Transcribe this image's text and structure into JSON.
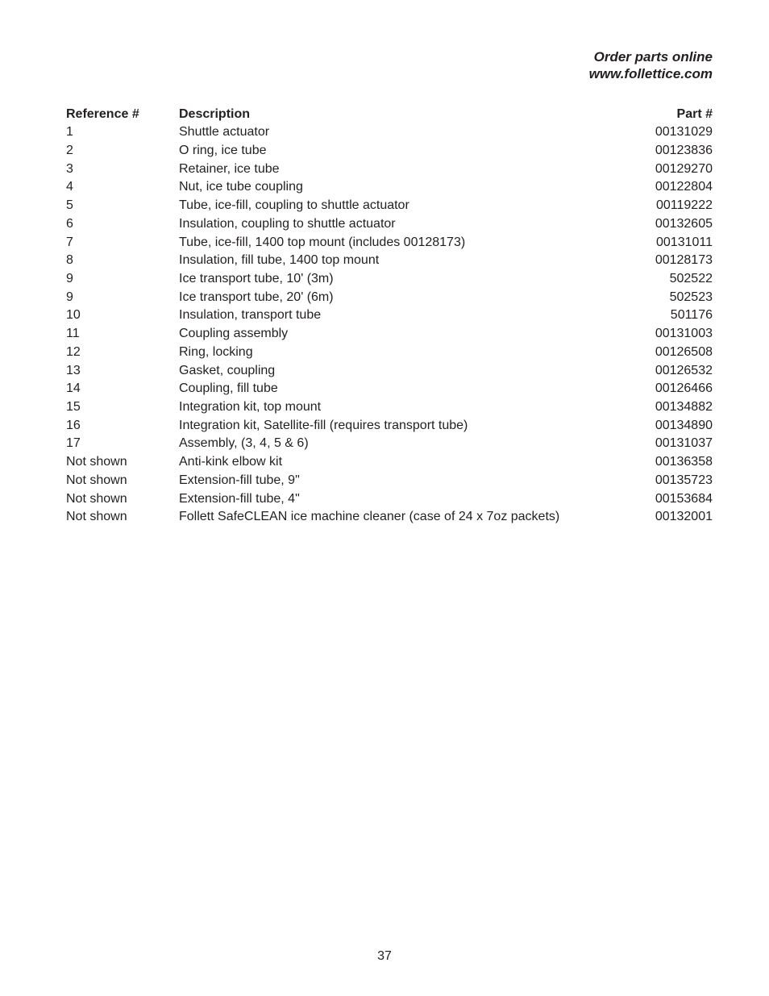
{
  "header_block": {
    "line1": "Order parts online",
    "line2": "www.follettice.com"
  },
  "columns": {
    "ref": "Reference #",
    "desc": "Description",
    "part": "Part #"
  },
  "rows": [
    {
      "ref": "1",
      "desc": "Shuttle actuator",
      "part": "00131029"
    },
    {
      "ref": "2",
      "desc": "O ring, ice tube",
      "part": "00123836"
    },
    {
      "ref": "3",
      "desc": "Retainer, ice tube",
      "part": "00129270"
    },
    {
      "ref": "4",
      "desc": "Nut, ice tube coupling",
      "part": "00122804"
    },
    {
      "ref": "5",
      "desc": "Tube, ice-fill, coupling to shuttle actuator",
      "part": "00119222"
    },
    {
      "ref": "6",
      "desc": "Insulation, coupling to shuttle actuator",
      "part": "00132605"
    },
    {
      "ref": "7",
      "desc": "Tube, ice-fill, 1400 top mount (includes 00128173)",
      "part": "00131011"
    },
    {
      "ref": "8",
      "desc": "Insulation, fill tube, 1400 top mount",
      "part": "00128173"
    },
    {
      "ref": "9",
      "desc": "Ice transport tube, 10' (3m)",
      "part": "502522"
    },
    {
      "ref": "9",
      "desc": "Ice transport tube, 20' (6m)",
      "part": "502523"
    },
    {
      "ref": "10",
      "desc": "Insulation, transport tube",
      "part": "501176"
    },
    {
      "ref": "11",
      "desc": "Coupling assembly",
      "part": "00131003"
    },
    {
      "ref": "12",
      "desc": "Ring, locking",
      "part": "00126508"
    },
    {
      "ref": "13",
      "desc": "Gasket, coupling",
      "part": "00126532"
    },
    {
      "ref": "14",
      "desc": "Coupling, fill tube",
      "part": "00126466"
    },
    {
      "ref": "15",
      "desc": "Integration kit, top mount",
      "part": "00134882"
    },
    {
      "ref": "16",
      "desc": "Integration kit, Satellite-fill (requires transport tube)",
      "part": "00134890"
    },
    {
      "ref": "17",
      "desc": "Assembly, (3, 4, 5 & 6)",
      "part": "00131037"
    },
    {
      "ref": "Not shown",
      "desc": "Anti-kink elbow kit",
      "part": "00136358"
    },
    {
      "ref": "Not shown",
      "desc": "Extension-fill tube, 9\"",
      "part": "00135723"
    },
    {
      "ref": "Not shown",
      "desc": "Extension-fill tube, 4\"",
      "part": "00153684"
    },
    {
      "ref": "Not shown",
      "desc": "Follett SafeCLEAN ice machine cleaner (case of 24 x 7oz packets)",
      "part": "00132001"
    }
  ],
  "page_number": "37"
}
